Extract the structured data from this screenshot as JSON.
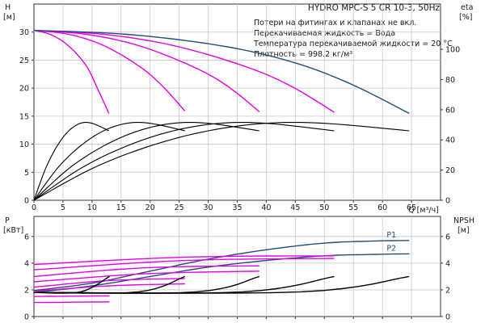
{
  "header": {
    "title": "HYDRO MPC-S 5 CR 10-3, 50Hz",
    "notes": [
      "Потери на фитингах и клапанах не вкл.",
      "Перекачиваемая жидкость = Вода",
      "Температура перекачиваемой жидкости = 20 °C",
      "Плотность = 998.2 кг/м³"
    ]
  },
  "chart_data": [
    {
      "type": "line",
      "id": "head-efficiency",
      "left_axis": {
        "label": "H",
        "unit": "[м]",
        "ticks": [
          "0",
          "5",
          "10",
          "15",
          "20",
          "25",
          "30"
        ],
        "ylim": [
          0,
          35
        ]
      },
      "right_axis": {
        "label": "eta",
        "unit": "[%]",
        "ticks": [
          "0",
          "20",
          "40",
          "60",
          "80",
          "100"
        ],
        "ylim": [
          0,
          130
        ]
      },
      "x_axis": {
        "label": "Q [м³/ч]",
        "ticks": [
          "0",
          "5",
          "10",
          "15",
          "20",
          "25",
          "30",
          "35",
          "40",
          "45",
          "50",
          "55",
          "60",
          "65"
        ],
        "xlim": [
          0,
          70
        ]
      },
      "grid": true,
      "series": [
        {
          "group": "max_speed_head",
          "color": "#e600e6",
          "x": [
            0,
            3,
            6,
            9,
            11,
            12.9
          ],
          "y": [
            30.3,
            29.5,
            27.5,
            24.0,
            19.8,
            15.5
          ]
        },
        {
          "group": "max_speed_head",
          "color": "#e600e6",
          "x": [
            0,
            6,
            12,
            18,
            22,
            26
          ],
          "y": [
            30.3,
            29.6,
            27.6,
            24.0,
            20.5,
            15.9
          ]
        },
        {
          "group": "max_speed_head",
          "color": "#e600e6",
          "x": [
            0,
            9,
            18,
            27,
            33,
            38.8
          ],
          "y": [
            30.3,
            29.6,
            27.6,
            24.0,
            20.6,
            15.8
          ]
        },
        {
          "group": "max_speed_head",
          "color": "#e600e6",
          "x": [
            0,
            12,
            24,
            36,
            44,
            51.7
          ],
          "y": [
            30.3,
            29.6,
            27.6,
            24.0,
            20.5,
            15.7
          ]
        },
        {
          "group": "system_head",
          "color": "#1f4e79",
          "x": [
            0,
            16,
            32,
            44,
            54,
            64.6
          ],
          "y": [
            30.3,
            29.6,
            27.6,
            24.8,
            21.0,
            15.5
          ]
        },
        {
          "group": "efficiency",
          "color": "#000000",
          "x": [
            0,
            2,
            4,
            6,
            8,
            10,
            12.9
          ],
          "y": [
            0,
            21,
            36,
            46,
            51,
            51,
            46
          ]
        },
        {
          "group": "efficiency",
          "color": "#000000",
          "x": [
            0,
            4,
            8,
            12,
            16,
            20,
            26
          ],
          "y": [
            0,
            21,
            36,
            46,
            51,
            51,
            46
          ]
        },
        {
          "group": "efficiency",
          "color": "#000000",
          "x": [
            0,
            6,
            12,
            18,
            24,
            30,
            38.8
          ],
          "y": [
            0,
            21,
            36,
            46,
            51,
            51,
            46
          ]
        },
        {
          "group": "efficiency",
          "color": "#000000",
          "x": [
            0,
            8,
            16,
            24,
            32,
            40,
            51.7
          ],
          "y": [
            0,
            21,
            36,
            46,
            51,
            51,
            46
          ]
        },
        {
          "group": "efficiency",
          "color": "#000000",
          "x": [
            0,
            10,
            20,
            30,
            40,
            50,
            64.6
          ],
          "y": [
            0,
            21,
            36,
            46,
            51,
            51,
            46
          ]
        }
      ]
    },
    {
      "type": "line",
      "id": "power-npsh",
      "left_axis": {
        "label": "P",
        "unit": "[кВт]",
        "ticks": [
          "0",
          "2",
          "4",
          "6"
        ],
        "ylim": [
          0,
          7.5
        ]
      },
      "right_axis": {
        "label": "NPSH",
        "unit": "[м]",
        "ticks": [
          "0",
          "2",
          "4",
          "6"
        ],
        "ylim": [
          0,
          7.5
        ]
      },
      "x_axis": {
        "xlim": [
          0,
          70
        ]
      },
      "grid": true,
      "series": [
        {
          "name": "P1",
          "color": "#1f4e79",
          "x": [
            0,
            10,
            20,
            30,
            40,
            50,
            58,
            64.6
          ],
          "y": [
            1.95,
            2.5,
            3.4,
            4.3,
            5.0,
            5.5,
            5.65,
            5.7
          ]
        },
        {
          "name": "P2",
          "color": "#1f4e79",
          "x": [
            0,
            10,
            20,
            30,
            40,
            50,
            58,
            64.6
          ],
          "y": [
            1.8,
            2.3,
            3.0,
            3.7,
            4.2,
            4.55,
            4.65,
            4.7
          ]
        },
        {
          "group": "power",
          "color": "#e600e6",
          "x": [
            0,
            13
          ],
          "y": [
            1.05,
            1.1
          ]
        },
        {
          "group": "power",
          "color": "#e600e6",
          "x": [
            0,
            13
          ],
          "y": [
            1.5,
            1.55
          ]
        },
        {
          "group": "power",
          "color": "#e600e6",
          "x": [
            0,
            13,
            26
          ],
          "y": [
            1.9,
            2.3,
            2.45
          ]
        },
        {
          "group": "power",
          "color": "#e600e6",
          "x": [
            0,
            13,
            26
          ],
          "y": [
            2.2,
            2.7,
            2.85
          ]
        },
        {
          "group": "power",
          "color": "#e600e6",
          "x": [
            0,
            19,
            38.8
          ],
          "y": [
            2.6,
            3.2,
            3.4
          ]
        },
        {
          "group": "power",
          "color": "#e600e6",
          "x": [
            0,
            19,
            38.8
          ],
          "y": [
            3.0,
            3.65,
            3.8
          ]
        },
        {
          "group": "power",
          "color": "#e600e6",
          "x": [
            0,
            26,
            51.7
          ],
          "y": [
            3.5,
            4.2,
            4.35
          ]
        },
        {
          "group": "power",
          "color": "#e600e6",
          "x": [
            0,
            26,
            51.7
          ],
          "y": [
            3.9,
            4.45,
            4.55
          ]
        },
        {
          "group": "npsh",
          "color": "#000000",
          "x": [
            0,
            8,
            13
          ],
          "y": [
            1.8,
            1.85,
            3.0
          ]
        },
        {
          "group": "npsh",
          "color": "#000000",
          "x": [
            0,
            18,
            26
          ],
          "y": [
            1.8,
            1.85,
            3.0
          ]
        },
        {
          "group": "npsh",
          "color": "#000000",
          "x": [
            0,
            28,
            38.8
          ],
          "y": [
            1.8,
            1.85,
            3.0
          ]
        },
        {
          "group": "npsh",
          "color": "#000000",
          "x": [
            0,
            36,
            51.7
          ],
          "y": [
            1.8,
            1.85,
            3.0
          ]
        },
        {
          "group": "npsh",
          "color": "#000000",
          "x": [
            0,
            46,
            64.6
          ],
          "y": [
            1.8,
            1.85,
            3.0
          ]
        }
      ]
    }
  ]
}
